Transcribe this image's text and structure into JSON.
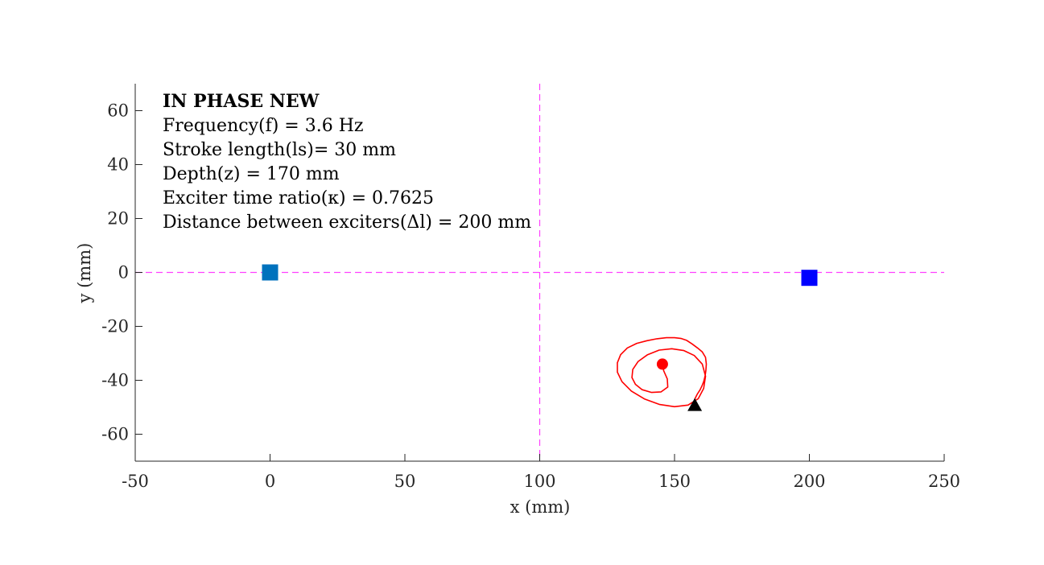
{
  "chart_data": {
    "type": "scatter",
    "title": "",
    "xlabel": "x (mm)",
    "ylabel": "y (mm)",
    "xlim": [
      -50,
      250
    ],
    "ylim": [
      -70,
      70
    ],
    "xticks": [
      -50,
      0,
      50,
      100,
      150,
      200,
      250
    ],
    "yticks": [
      -60,
      -40,
      -20,
      0,
      20,
      40,
      60
    ],
    "xtick_labels": [
      "-50",
      "0",
      "50",
      "100",
      "150",
      "200",
      "250"
    ],
    "ytick_labels": [
      "-60",
      "-40",
      "-20",
      "0",
      "20",
      "40",
      "60"
    ],
    "grid": false,
    "reference_lines": [
      {
        "orientation": "horizontal",
        "value": 0,
        "style": "dashed",
        "color": "#ff40ff"
      },
      {
        "orientation": "vertical",
        "value": 100,
        "style": "dashed",
        "color": "#ff40ff"
      }
    ],
    "annotations": [
      "IN PHASE NEW",
      "Frequency(f) = 3.6 Hz",
      "Stroke length(ls)= 30 mm",
      "Depth(z) = 170 mm",
      "Exciter time ratio(κ) = 0.7625",
      "Distance between exciters(Δl) = 200 mm"
    ],
    "markers": [
      {
        "shape": "square",
        "x": 0,
        "y": 0,
        "color": "#0072bd"
      },
      {
        "shape": "square",
        "x": 200,
        "y": -2,
        "color": "#0000ff"
      },
      {
        "shape": "circle",
        "x": 145.5,
        "y": -34,
        "color": "#ff0000"
      },
      {
        "shape": "triangle",
        "x": 157.5,
        "y": -49,
        "color": "#000000"
      }
    ],
    "trajectory": {
      "color": "#ff0000",
      "x": [
        157.5,
        158.5,
        159.5,
        160.2,
        160.8,
        161.3,
        161.6,
        161.8,
        161.5,
        160.3,
        158.5,
        156.5,
        154.5,
        152.5,
        150,
        147,
        143.5,
        139.8,
        136,
        132.5,
        130,
        128.8,
        128.8,
        130.5,
        134,
        139,
        144.5,
        150,
        155,
        158.8,
        160.8,
        161.5,
        160.3,
        157.3,
        153.5,
        149,
        144.3,
        140,
        136.5,
        134.5,
        134.2,
        135.5,
        138,
        141.5,
        145,
        147.5,
        147.3,
        146,
        145.5
      ],
      "y": [
        -47,
        -45,
        -43.5,
        -42,
        -40.5,
        -38.5,
        -36.5,
        -34,
        -31.5,
        -29.5,
        -28,
        -26.5,
        -25.2,
        -24.5,
        -24.2,
        -24.2,
        -24.6,
        -25.3,
        -26.3,
        -28,
        -30.5,
        -33.5,
        -37,
        -40.5,
        -44,
        -47,
        -49,
        -49.8,
        -49.2,
        -46.8,
        -43,
        -38.5,
        -34,
        -30.8,
        -29,
        -28.3,
        -28.8,
        -30.5,
        -33,
        -36,
        -39,
        -41.5,
        -43.5,
        -44.5,
        -44.3,
        -42.5,
        -39.5,
        -36.5,
        -34
      ]
    }
  }
}
